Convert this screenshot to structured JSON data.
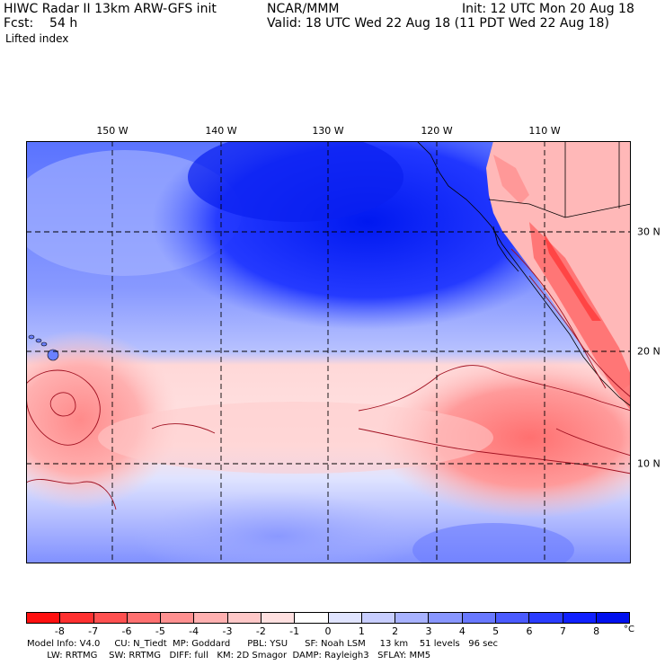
{
  "header": {
    "model": "HIWC Radar II 13km ARW-GFS init",
    "org": "NCAR/MMM",
    "init": "Init: 12 UTC Mon 20 Aug 18",
    "fcst": "Fcst:    54 h",
    "valid": "Valid: 18 UTC Wed 22 Aug 18 (11 PDT Wed 22 Aug 18)",
    "field": "Lifted index"
  },
  "map": {
    "longitude_labels": [
      "150 W",
      "140 W",
      "130 W",
      "120 W",
      "110 W"
    ],
    "latitude_labels": [
      "30 N",
      "20 N",
      "10 N"
    ]
  },
  "colorbar": {
    "unit": "°C",
    "tick_labels": [
      "-8",
      "-7",
      "-6",
      "-5",
      "-4",
      "-3",
      "-2",
      "-1",
      "0",
      "1",
      "2",
      "3",
      "4",
      "5",
      "6",
      "7",
      "8"
    ],
    "colors": [
      "#ff1010",
      "#ff3030",
      "#ff5050",
      "#ff7070",
      "#ff9090",
      "#ffb0b0",
      "#ffc8c8",
      "#ffe0e0",
      "#ffffff",
      "#e0e4ff",
      "#c8ceff",
      "#a8b2ff",
      "#8896ff",
      "#6878ff",
      "#4a5aff",
      "#2a3cff",
      "#1020ff",
      "#0010ee"
    ]
  },
  "footer": {
    "line1": "Model Info: V4.0     CU: N_Tiedt  MP: Goddard      PBL: YSU      SF: Noah LSM     13 km    51 levels   96 sec",
    "line2": "       LW: RRTMG    SW: RRTMG   DIFF: full   KM: 2D Smagor  DAMP: Rayleigh3   SFLAY: MM5"
  }
}
